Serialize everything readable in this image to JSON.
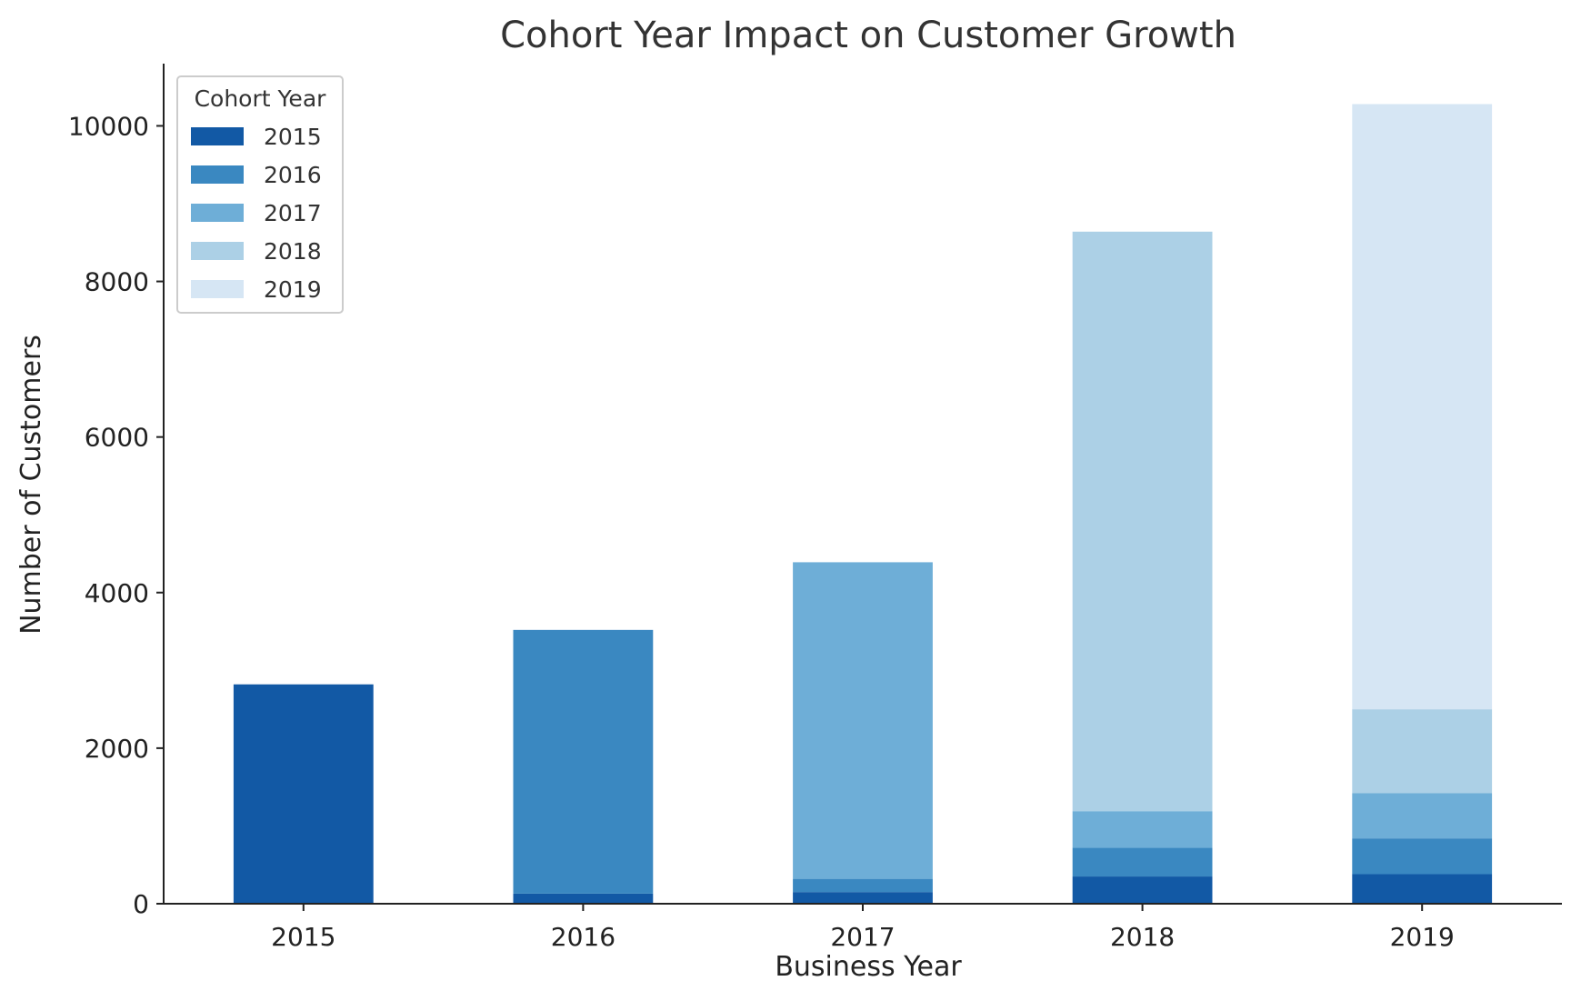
{
  "chart_data": {
    "type": "bar",
    "stacked": true,
    "title": "Cohort Year Impact on Customer Growth",
    "xlabel": "Business Year",
    "ylabel": "Number of Customers",
    "categories": [
      "2015",
      "2016",
      "2017",
      "2018",
      "2019"
    ],
    "ylim": [
      0,
      10800
    ],
    "yticks": [
      0,
      2000,
      4000,
      6000,
      8000,
      10000
    ],
    "grid": false,
    "legend": {
      "title": "Cohort Year",
      "placement": "top-left"
    },
    "series": [
      {
        "name": "2015",
        "color": "#1259a5",
        "values": [
          2820,
          130,
          150,
          350,
          380
        ]
      },
      {
        "name": "2016",
        "color": "#3a88c1",
        "values": [
          0,
          3390,
          170,
          370,
          460
        ]
      },
      {
        "name": "2017",
        "color": "#6eaed7",
        "values": [
          0,
          0,
          4070,
          470,
          580
        ]
      },
      {
        "name": "2018",
        "color": "#acd0e6",
        "values": [
          0,
          0,
          0,
          7450,
          1080
        ]
      },
      {
        "name": "2019",
        "color": "#d6e6f4",
        "values": [
          0,
          0,
          0,
          0,
          7780
        ]
      }
    ]
  }
}
